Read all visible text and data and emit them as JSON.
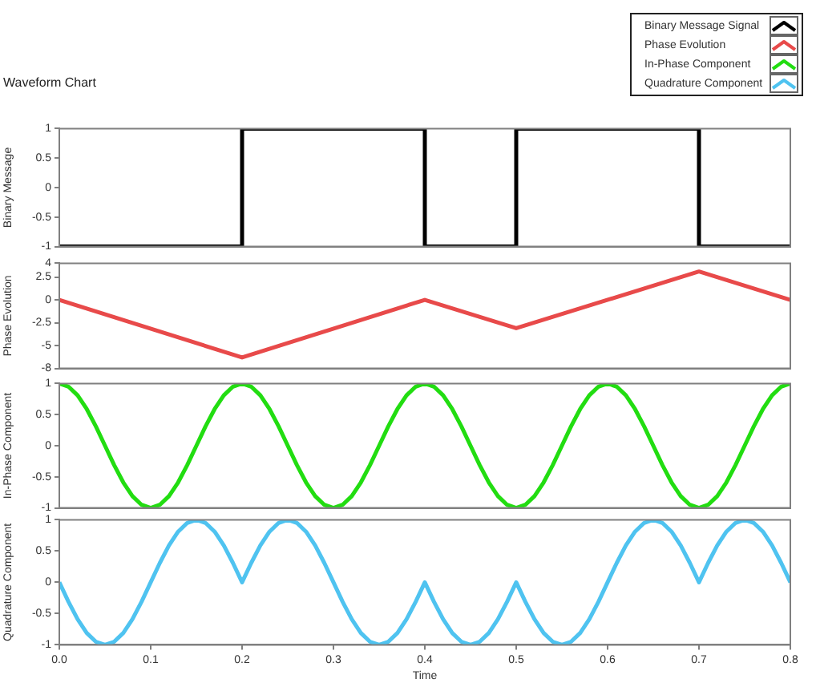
{
  "chart_data": [
    {
      "type": "step",
      "title": "Waveform Chart",
      "ylabel": "Binary Message",
      "legend": "top right",
      "grid": false,
      "tick_labels": "y",
      "xlim": [
        0,
        0.8
      ],
      "ylim": [
        -1,
        1
      ],
      "yticks": [
        1,
        0.5,
        0,
        -0.5,
        -1
      ],
      "series": [
        {
          "name": "Binary Message Signal",
          "color": "#000000",
          "x": [
            0,
            0.2,
            0.4,
            0.5,
            0.7,
            0.8
          ],
          "values": [
            -1,
            1,
            -1,
            1,
            -1,
            -1
          ]
        }
      ]
    },
    {
      "type": "line",
      "ylabel": "Phase Evolution",
      "grid": false,
      "tick_labels": "y",
      "xlim": [
        0,
        0.8
      ],
      "ylim": [
        -7.5,
        4
      ],
      "yticks": [
        4,
        2.5,
        0,
        -2.5,
        -5,
        {
          "value": -7.5,
          "label": "-8"
        }
      ],
      "series": [
        {
          "name": "Phase Evolution",
          "color": "#e84a4a",
          "x": [
            0,
            0.2,
            0.4,
            0.5,
            0.7,
            0.8
          ],
          "values": [
            0,
            -6.3,
            0,
            -3.1,
            3.1,
            0
          ]
        }
      ]
    },
    {
      "type": "line",
      "ylabel": "In-Phase Component",
      "grid": false,
      "tick_labels": "y",
      "xlim": [
        0,
        0.8
      ],
      "ylim": [
        -1,
        1
      ],
      "yticks": [
        1,
        0.5,
        0,
        -0.5,
        -1
      ],
      "x": [
        0,
        0.01,
        0.02,
        0.03,
        0.04,
        0.05,
        0.06,
        0.07,
        0.08,
        0.09,
        0.1,
        0.11,
        0.12,
        0.13,
        0.14,
        0.15,
        0.16,
        0.17,
        0.18,
        0.19,
        0.2,
        0.21,
        0.22,
        0.23,
        0.24,
        0.25,
        0.26,
        0.27,
        0.28,
        0.29,
        0.3,
        0.31,
        0.32,
        0.33,
        0.34,
        0.35,
        0.36,
        0.37,
        0.38,
        0.39,
        0.4,
        0.41,
        0.42,
        0.43,
        0.44,
        0.45,
        0.46,
        0.47,
        0.48,
        0.49,
        0.5,
        0.51,
        0.52,
        0.53,
        0.54,
        0.55,
        0.56,
        0.57,
        0.58,
        0.59,
        0.6,
        0.61,
        0.62,
        0.63,
        0.64,
        0.65,
        0.66,
        0.67,
        0.68,
        0.69,
        0.7,
        0.71,
        0.72,
        0.73,
        0.74,
        0.75,
        0.76,
        0.77,
        0.78,
        0.79,
        0.8
      ],
      "series": [
        {
          "name": "In-Phase Component",
          "color": "#22dd11",
          "values": [
            1,
            0.95,
            0.81,
            0.59,
            0.31,
            0,
            -0.31,
            -0.59,
            -0.81,
            -0.95,
            -1,
            -0.95,
            -0.81,
            -0.59,
            -0.31,
            0,
            0.31,
            0.59,
            0.81,
            0.95,
            1,
            0.95,
            0.81,
            0.59,
            0.31,
            0,
            -0.31,
            -0.59,
            -0.81,
            -0.95,
            -1,
            -0.95,
            -0.81,
            -0.59,
            -0.31,
            0,
            0.31,
            0.59,
            0.81,
            0.95,
            1,
            0.95,
            0.81,
            0.59,
            0.31,
            0,
            -0.31,
            -0.59,
            -0.81,
            -0.95,
            -1,
            -0.95,
            -0.81,
            -0.59,
            -0.31,
            0,
            0.31,
            0.59,
            0.81,
            0.95,
            1,
            0.95,
            0.81,
            0.59,
            0.31,
            0,
            -0.31,
            -0.59,
            -0.81,
            -0.95,
            -1,
            -0.95,
            -0.81,
            -0.59,
            -0.31,
            0,
            0.31,
            0.59,
            0.81,
            0.95,
            1
          ]
        }
      ]
    },
    {
      "type": "line",
      "xlabel": "Time",
      "ylabel": "Quadrature Component",
      "grid": false,
      "xlim": [
        0,
        0.8
      ],
      "xticks": [
        {
          "value": 0,
          "label": "0.0"
        },
        0.1,
        0.2,
        0.3,
        0.4,
        0.5,
        0.6,
        0.7,
        0.8
      ],
      "ylim": [
        -1,
        1
      ],
      "yticks": [
        1,
        0.5,
        0,
        -0.5,
        -1
      ],
      "x": [
        0,
        0.01,
        0.02,
        0.03,
        0.04,
        0.05,
        0.06,
        0.07,
        0.08,
        0.09,
        0.1,
        0.11,
        0.12,
        0.13,
        0.14,
        0.15,
        0.16,
        0.17,
        0.18,
        0.19,
        0.2,
        0.21,
        0.22,
        0.23,
        0.24,
        0.25,
        0.26,
        0.27,
        0.28,
        0.29,
        0.3,
        0.31,
        0.32,
        0.33,
        0.34,
        0.35,
        0.36,
        0.37,
        0.38,
        0.39,
        0.4,
        0.41,
        0.42,
        0.43,
        0.44,
        0.45,
        0.46,
        0.47,
        0.48,
        0.49,
        0.5,
        0.51,
        0.52,
        0.53,
        0.54,
        0.55,
        0.56,
        0.57,
        0.58,
        0.59,
        0.6,
        0.61,
        0.62,
        0.63,
        0.64,
        0.65,
        0.66,
        0.67,
        0.68,
        0.69,
        0.7,
        0.71,
        0.72,
        0.73,
        0.74,
        0.75,
        0.76,
        0.77,
        0.78,
        0.79,
        0.8
      ],
      "series": [
        {
          "name": "Quadrature Component",
          "color": "#4fc3f0",
          "values": [
            0,
            -0.31,
            -0.59,
            -0.81,
            -0.95,
            -1,
            -0.95,
            -0.81,
            -0.59,
            -0.31,
            0,
            0.31,
            0.59,
            0.81,
            0.95,
            1,
            0.95,
            0.81,
            0.59,
            0.31,
            0,
            0.31,
            0.59,
            0.81,
            0.95,
            1,
            0.95,
            0.81,
            0.59,
            0.31,
            0,
            -0.31,
            -0.59,
            -0.81,
            -0.95,
            -1,
            -0.95,
            -0.81,
            -0.59,
            -0.31,
            0,
            -0.31,
            -0.59,
            -0.81,
            -0.95,
            -1,
            -0.95,
            -0.81,
            -0.59,
            -0.31,
            0,
            -0.31,
            -0.59,
            -0.81,
            -0.95,
            -1,
            -0.95,
            -0.81,
            -0.59,
            -0.31,
            0,
            0.31,
            0.59,
            0.81,
            0.95,
            1,
            0.95,
            0.81,
            0.59,
            0.31,
            0,
            0.31,
            0.59,
            0.81,
            0.95,
            1,
            0.95,
            0.81,
            0.59,
            0.31,
            0
          ]
        }
      ]
    }
  ]
}
